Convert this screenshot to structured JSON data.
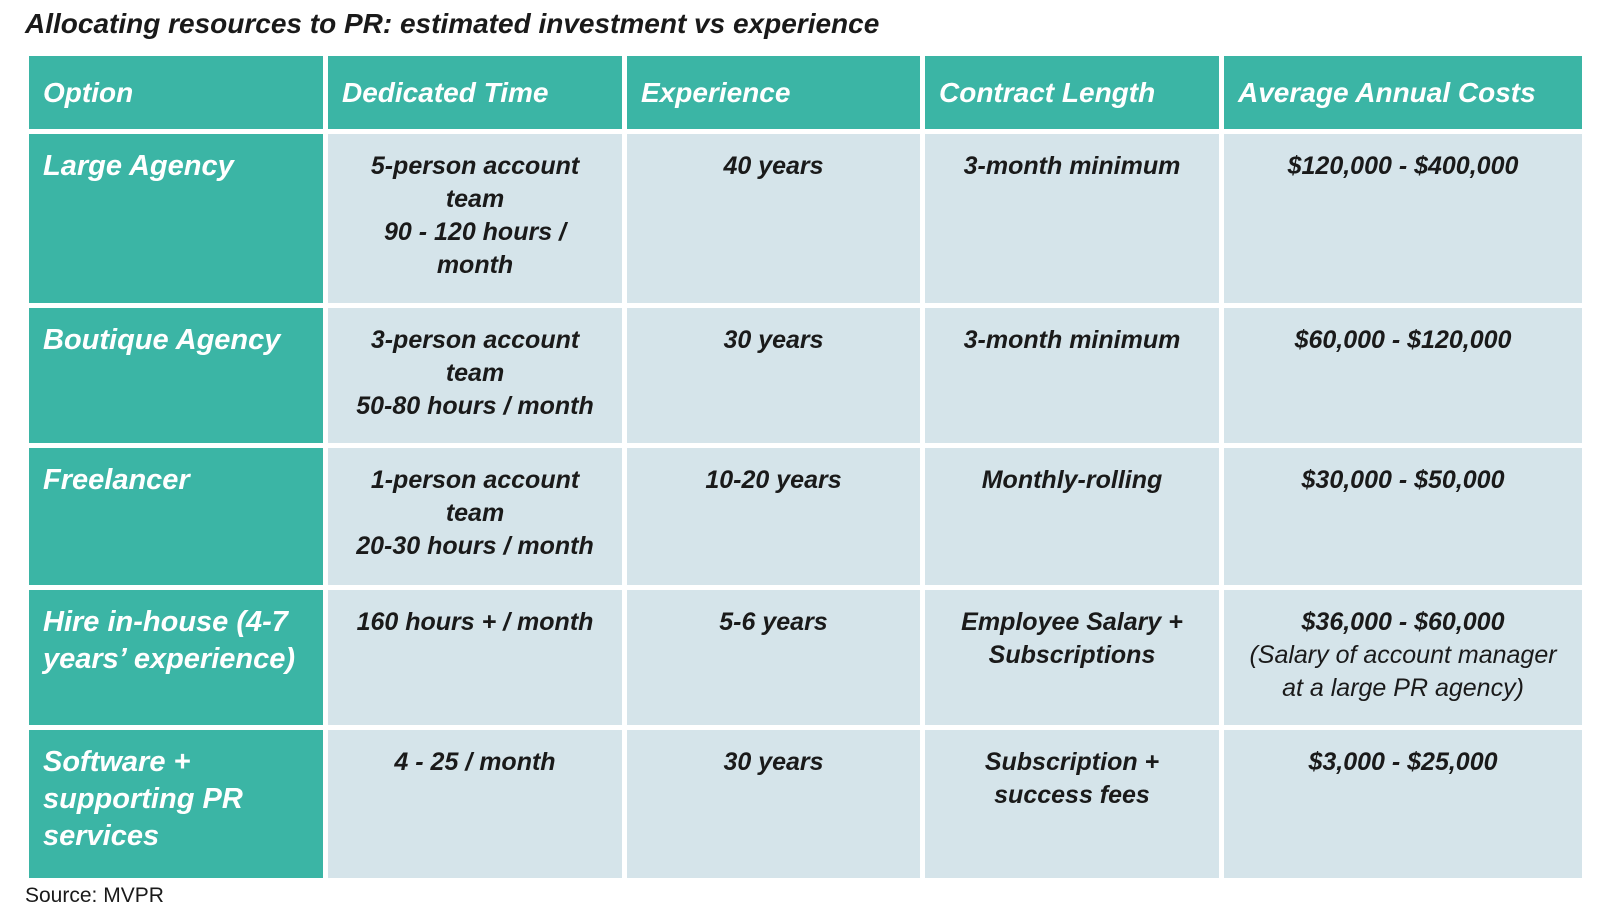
{
  "title": "Allocating resources to PR: estimated investment vs experience",
  "table": {
    "header": [
      "Option",
      "Dedicated Time",
      "Experience",
      "Contract Length",
      "Average Annual Costs"
    ],
    "rows": [
      [
        [
          "Large Agency"
        ],
        [
          "5-person account team",
          "90 - 120 hours / month"
        ],
        [
          "40 years"
        ],
        [
          "3-month minimum"
        ],
        [
          "$120,000 - $400,000"
        ]
      ],
      [
        [
          "Boutique Agency"
        ],
        [
          "3-person account team",
          "50-80 hours / month"
        ],
        [
          "30 years"
        ],
        [
          "3-month minimum"
        ],
        [
          "$60,000 - $120,000"
        ]
      ],
      [
        [
          "Freelancer"
        ],
        [
          "1-person account team",
          "20-30 hours / month"
        ],
        [
          "10-20 years"
        ],
        [
          "Monthly-rolling"
        ],
        [
          "$30,000 - $50,000"
        ]
      ],
      [
        [
          "Hire in-house (4-7 years’ experience)"
        ],
        [
          "160 hours + / month"
        ],
        [
          "5-6 years"
        ],
        [
          "Employee Salary + Subscriptions"
        ],
        [
          "$36,000 - $60,000",
          "(Salary of account manager at a large PR agency)"
        ]
      ],
      [
        [
          "Software + supporting PR services"
        ],
        [
          "4 - 25 / month"
        ],
        [
          "30 years"
        ],
        [
          "Subscription + success fees"
        ],
        [
          "$3,000 - $25,000"
        ]
      ]
    ]
  },
  "source": "Source: MVPR"
}
